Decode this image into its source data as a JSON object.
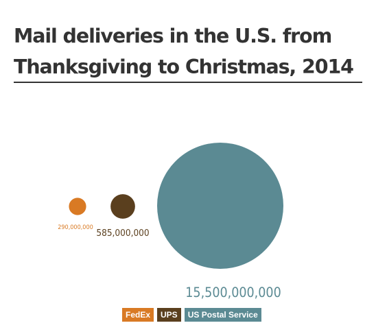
{
  "title_line1": "Mail deliveries in the U.S. from",
  "title_line2": "Thanksgiving to Christmas, 2014",
  "chart_data": {
    "type": "bubble",
    "title": "Mail deliveries in the U.S. from Thanksgiving to Christmas, 2014",
    "series": [
      {
        "name": "FedEx",
        "value": 290000000,
        "value_label": "290,000,000",
        "color": "#d97a24"
      },
      {
        "name": "UPS",
        "value": 585000000,
        "value_label": "585,000,000",
        "color": "#5a3f1e"
      },
      {
        "name": "US Postal Service",
        "value": 15500000000,
        "value_label": "15,500,000,000",
        "color": "#5b8a93"
      }
    ],
    "legend_position": "bottom-center"
  }
}
